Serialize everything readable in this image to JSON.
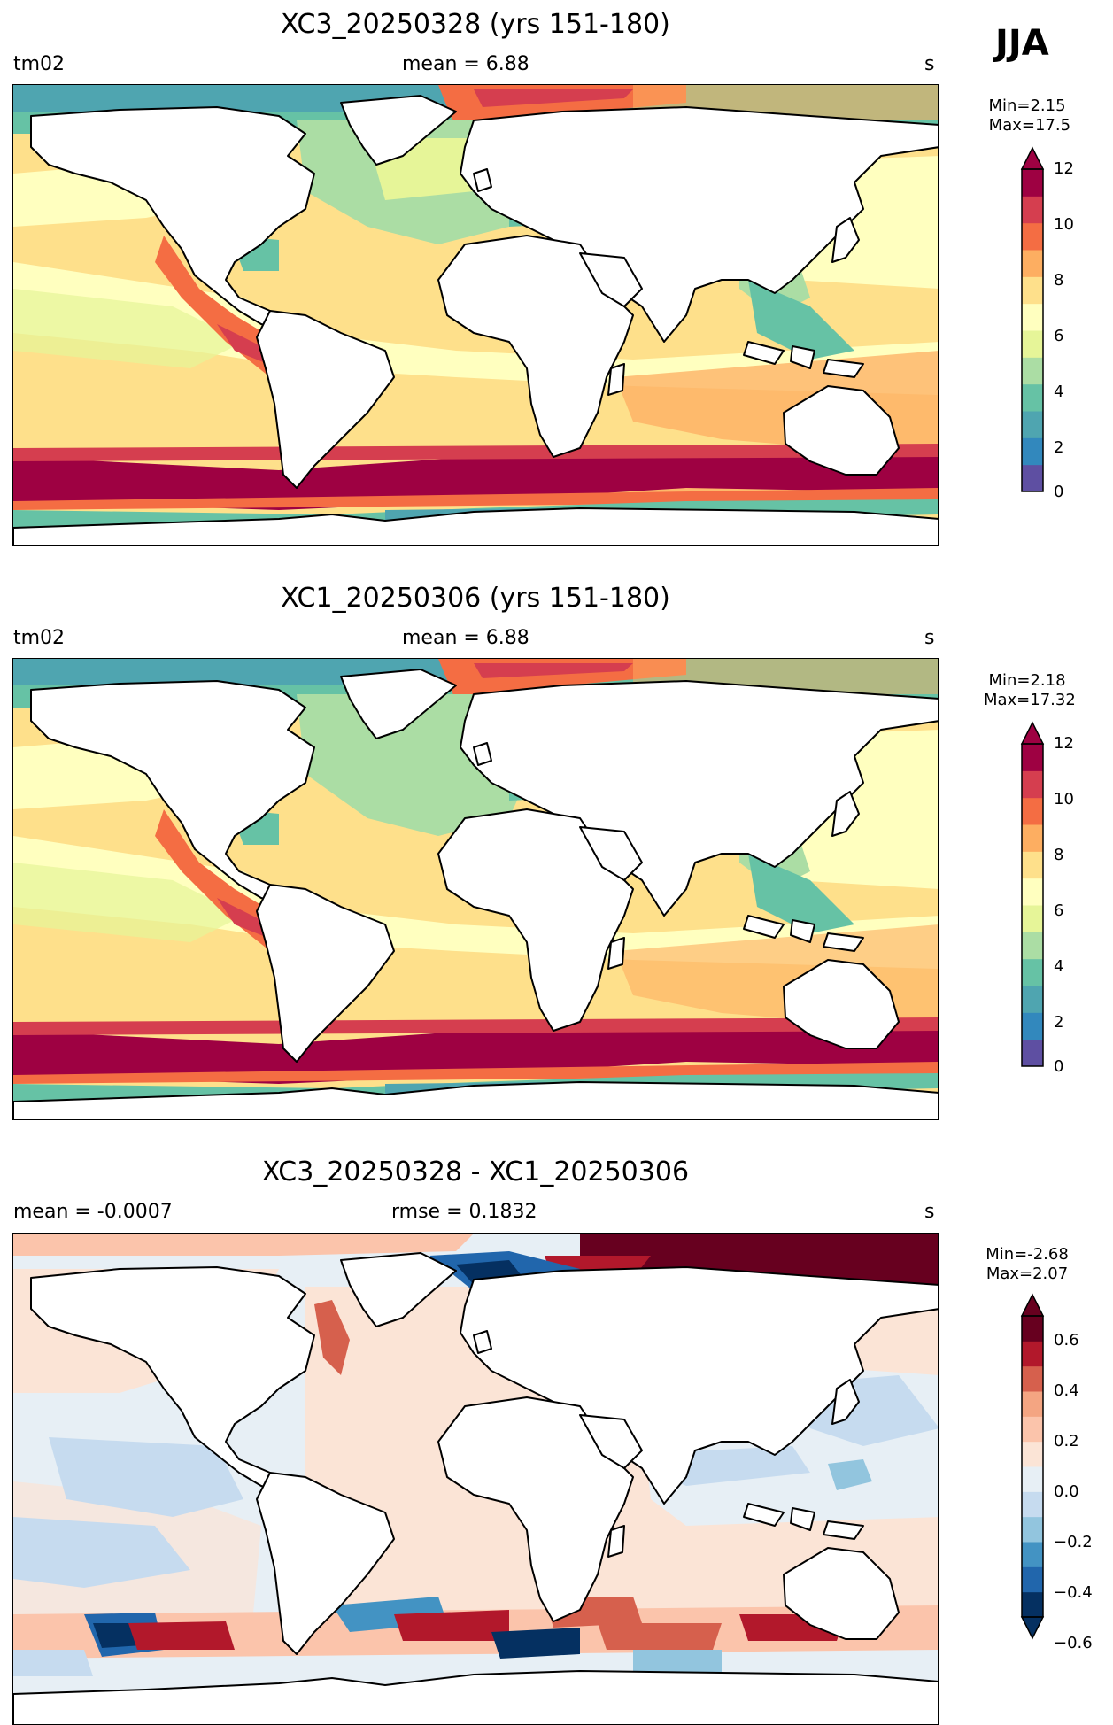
{
  "season": "JJA",
  "panels": [
    {
      "title": "XC3_20250328 (yrs 151-180)",
      "left_label": "tm02",
      "center_label": "mean = 6.88",
      "right_label": "s",
      "minmax": "Min=2.15\n Max=17.5",
      "colorbar": {
        "ticks": [
          "0",
          "2",
          "4",
          "6",
          "8",
          "10",
          "12"
        ],
        "colors": [
          "#5e4fa2",
          "#3288bd",
          "#4fa5b0",
          "#66c2a5",
          "#abdda4",
          "#e6f598",
          "#ffffbf",
          "#fee08b",
          "#fdae61",
          "#f46d43",
          "#d53e4f",
          "#9e0142"
        ],
        "extend": "max"
      }
    },
    {
      "title": "XC1_20250306 (yrs 151-180)",
      "left_label": "tm02",
      "center_label": "mean = 6.88",
      "right_label": "s",
      "minmax": "Min=2.18\n Max=17.32",
      "colorbar": {
        "ticks": [
          "0",
          "2",
          "4",
          "6",
          "8",
          "10",
          "12"
        ],
        "colors": [
          "#5e4fa2",
          "#3288bd",
          "#4fa5b0",
          "#66c2a5",
          "#abdda4",
          "#e6f598",
          "#ffffbf",
          "#fee08b",
          "#fdae61",
          "#f46d43",
          "#d53e4f",
          "#9e0142"
        ],
        "extend": "max"
      }
    },
    {
      "title": "XC3_20250328 - XC1_20250306",
      "left_label": "mean = -0.0007",
      "center_label": "rmse = 0.1832",
      "right_label": "s",
      "minmax": "Min=-2.68\nMax=2.07",
      "colorbar": {
        "ticks": [
          "0.6",
          "0.4",
          "0.2",
          "0.0",
          "−0.2",
          "−0.4",
          "−0.6"
        ],
        "colors": [
          "#053061",
          "#2166ac",
          "#4393c3",
          "#92c5de",
          "#c6dbef",
          "#e7eff5",
          "#fbe4d6",
          "#fbc4ab",
          "#f4a582",
          "#d6604d",
          "#b2182b",
          "#67001f"
        ],
        "extend": "both"
      }
    }
  ]
}
